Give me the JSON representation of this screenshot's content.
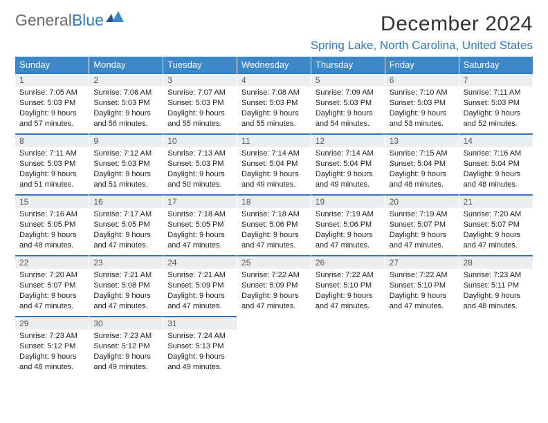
{
  "brand": {
    "word1": "General",
    "word2": "Blue"
  },
  "header": {
    "month_title": "December 2024",
    "location": "Spring Lake, North Carolina, United States"
  },
  "colors": {
    "header_bg": "#3b87c8",
    "header_border": "#2f78bd",
    "daynum_bg": "#eceff1",
    "brand_blue": "#2f78bd",
    "brand_gray": "#6b6b6b"
  },
  "weekdays": [
    "Sunday",
    "Monday",
    "Tuesday",
    "Wednesday",
    "Thursday",
    "Friday",
    "Saturday"
  ],
  "days": [
    {
      "n": "1",
      "sunrise": "Sunrise: 7:05 AM",
      "sunset": "Sunset: 5:03 PM",
      "day1": "Daylight: 9 hours",
      "day2": "and 57 minutes."
    },
    {
      "n": "2",
      "sunrise": "Sunrise: 7:06 AM",
      "sunset": "Sunset: 5:03 PM",
      "day1": "Daylight: 9 hours",
      "day2": "and 56 minutes."
    },
    {
      "n": "3",
      "sunrise": "Sunrise: 7:07 AM",
      "sunset": "Sunset: 5:03 PM",
      "day1": "Daylight: 9 hours",
      "day2": "and 55 minutes."
    },
    {
      "n": "4",
      "sunrise": "Sunrise: 7:08 AM",
      "sunset": "Sunset: 5:03 PM",
      "day1": "Daylight: 9 hours",
      "day2": "and 55 minutes."
    },
    {
      "n": "5",
      "sunrise": "Sunrise: 7:09 AM",
      "sunset": "Sunset: 5:03 PM",
      "day1": "Daylight: 9 hours",
      "day2": "and 54 minutes."
    },
    {
      "n": "6",
      "sunrise": "Sunrise: 7:10 AM",
      "sunset": "Sunset: 5:03 PM",
      "day1": "Daylight: 9 hours",
      "day2": "and 53 minutes."
    },
    {
      "n": "7",
      "sunrise": "Sunrise: 7:11 AM",
      "sunset": "Sunset: 5:03 PM",
      "day1": "Daylight: 9 hours",
      "day2": "and 52 minutes."
    },
    {
      "n": "8",
      "sunrise": "Sunrise: 7:11 AM",
      "sunset": "Sunset: 5:03 PM",
      "day1": "Daylight: 9 hours",
      "day2": "and 51 minutes."
    },
    {
      "n": "9",
      "sunrise": "Sunrise: 7:12 AM",
      "sunset": "Sunset: 5:03 PM",
      "day1": "Daylight: 9 hours",
      "day2": "and 51 minutes."
    },
    {
      "n": "10",
      "sunrise": "Sunrise: 7:13 AM",
      "sunset": "Sunset: 5:03 PM",
      "day1": "Daylight: 9 hours",
      "day2": "and 50 minutes."
    },
    {
      "n": "11",
      "sunrise": "Sunrise: 7:14 AM",
      "sunset": "Sunset: 5:04 PM",
      "day1": "Daylight: 9 hours",
      "day2": "and 49 minutes."
    },
    {
      "n": "12",
      "sunrise": "Sunrise: 7:14 AM",
      "sunset": "Sunset: 5:04 PM",
      "day1": "Daylight: 9 hours",
      "day2": "and 49 minutes."
    },
    {
      "n": "13",
      "sunrise": "Sunrise: 7:15 AM",
      "sunset": "Sunset: 5:04 PM",
      "day1": "Daylight: 9 hours",
      "day2": "and 48 minutes."
    },
    {
      "n": "14",
      "sunrise": "Sunrise: 7:16 AM",
      "sunset": "Sunset: 5:04 PM",
      "day1": "Daylight: 9 hours",
      "day2": "and 48 minutes."
    },
    {
      "n": "15",
      "sunrise": "Sunrise: 7:16 AM",
      "sunset": "Sunset: 5:05 PM",
      "day1": "Daylight: 9 hours",
      "day2": "and 48 minutes."
    },
    {
      "n": "16",
      "sunrise": "Sunrise: 7:17 AM",
      "sunset": "Sunset: 5:05 PM",
      "day1": "Daylight: 9 hours",
      "day2": "and 47 minutes."
    },
    {
      "n": "17",
      "sunrise": "Sunrise: 7:18 AM",
      "sunset": "Sunset: 5:05 PM",
      "day1": "Daylight: 9 hours",
      "day2": "and 47 minutes."
    },
    {
      "n": "18",
      "sunrise": "Sunrise: 7:18 AM",
      "sunset": "Sunset: 5:06 PM",
      "day1": "Daylight: 9 hours",
      "day2": "and 47 minutes."
    },
    {
      "n": "19",
      "sunrise": "Sunrise: 7:19 AM",
      "sunset": "Sunset: 5:06 PM",
      "day1": "Daylight: 9 hours",
      "day2": "and 47 minutes."
    },
    {
      "n": "20",
      "sunrise": "Sunrise: 7:19 AM",
      "sunset": "Sunset: 5:07 PM",
      "day1": "Daylight: 9 hours",
      "day2": "and 47 minutes."
    },
    {
      "n": "21",
      "sunrise": "Sunrise: 7:20 AM",
      "sunset": "Sunset: 5:07 PM",
      "day1": "Daylight: 9 hours",
      "day2": "and 47 minutes."
    },
    {
      "n": "22",
      "sunrise": "Sunrise: 7:20 AM",
      "sunset": "Sunset: 5:07 PM",
      "day1": "Daylight: 9 hours",
      "day2": "and 47 minutes."
    },
    {
      "n": "23",
      "sunrise": "Sunrise: 7:21 AM",
      "sunset": "Sunset: 5:08 PM",
      "day1": "Daylight: 9 hours",
      "day2": "and 47 minutes."
    },
    {
      "n": "24",
      "sunrise": "Sunrise: 7:21 AM",
      "sunset": "Sunset: 5:09 PM",
      "day1": "Daylight: 9 hours",
      "day2": "and 47 minutes."
    },
    {
      "n": "25",
      "sunrise": "Sunrise: 7:22 AM",
      "sunset": "Sunset: 5:09 PM",
      "day1": "Daylight: 9 hours",
      "day2": "and 47 minutes."
    },
    {
      "n": "26",
      "sunrise": "Sunrise: 7:22 AM",
      "sunset": "Sunset: 5:10 PM",
      "day1": "Daylight: 9 hours",
      "day2": "and 47 minutes."
    },
    {
      "n": "27",
      "sunrise": "Sunrise: 7:22 AM",
      "sunset": "Sunset: 5:10 PM",
      "day1": "Daylight: 9 hours",
      "day2": "and 47 minutes."
    },
    {
      "n": "28",
      "sunrise": "Sunrise: 7:23 AM",
      "sunset": "Sunset: 5:11 PM",
      "day1": "Daylight: 9 hours",
      "day2": "and 48 minutes."
    },
    {
      "n": "29",
      "sunrise": "Sunrise: 7:23 AM",
      "sunset": "Sunset: 5:12 PM",
      "day1": "Daylight: 9 hours",
      "day2": "and 48 minutes."
    },
    {
      "n": "30",
      "sunrise": "Sunrise: 7:23 AM",
      "sunset": "Sunset: 5:12 PM",
      "day1": "Daylight: 9 hours",
      "day2": "and 49 minutes."
    },
    {
      "n": "31",
      "sunrise": "Sunrise: 7:24 AM",
      "sunset": "Sunset: 5:13 PM",
      "day1": "Daylight: 9 hours",
      "day2": "and 49 minutes."
    }
  ]
}
